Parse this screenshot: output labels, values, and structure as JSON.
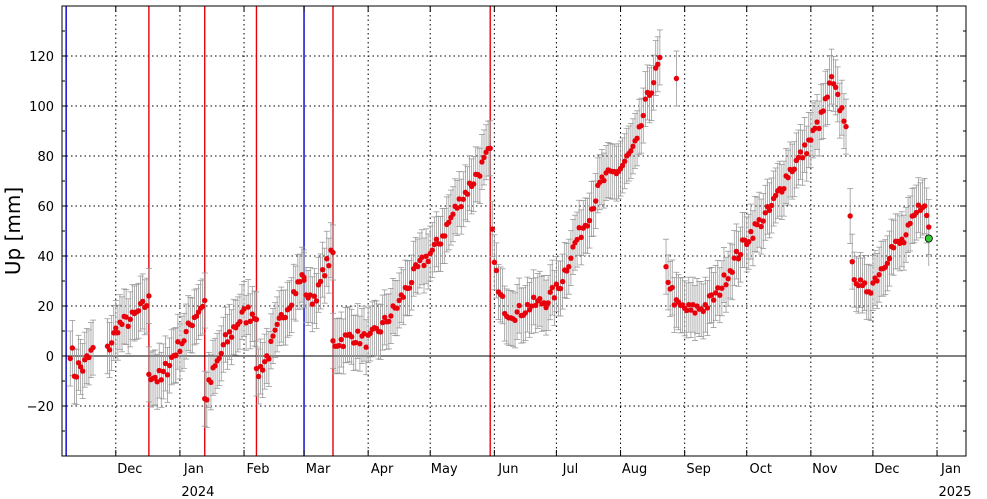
{
  "chart_data": {
    "type": "scatter",
    "ylabel": "Up [mm]",
    "ylim": [
      -40,
      140
    ],
    "yticks": [
      -20,
      0,
      20,
      40,
      60,
      80,
      100,
      120
    ],
    "xlim": [
      "2023-11-05",
      "2025-01-15"
    ],
    "xticks": [
      {
        "date": "2023-12-01",
        "label": "Dec"
      },
      {
        "date": "2024-01-01",
        "label": "Jan"
      },
      {
        "date": "2024-02-01",
        "label": "Feb"
      },
      {
        "date": "2024-03-01",
        "label": "Mar"
      },
      {
        "date": "2024-04-01",
        "label": "Apr"
      },
      {
        "date": "2024-05-01",
        "label": "May"
      },
      {
        "date": "2024-06-01",
        "label": "Jun"
      },
      {
        "date": "2024-07-01",
        "label": "Jul"
      },
      {
        "date": "2024-08-01",
        "label": "Aug"
      },
      {
        "date": "2024-09-01",
        "label": "Sep"
      },
      {
        "date": "2024-10-01",
        "label": "Oct"
      },
      {
        "date": "2024-11-01",
        "label": "Nov"
      },
      {
        "date": "2024-12-01",
        "label": "Dec"
      },
      {
        "date": "2025-01-01",
        "label": "Jan"
      }
    ],
    "year_labels": [
      {
        "date": "2024-01-01",
        "label": "2024"
      },
      {
        "date": "2025-01-01",
        "label": "2025"
      }
    ],
    "grid": true,
    "zero_line": true,
    "colors": {
      "points": "#e8000b",
      "errorbars": "#999999",
      "red_lines": "#e8000b",
      "blue_lines": "#0000cc",
      "latest_point": "#33cc33"
    },
    "vertical_lines": [
      {
        "date": "2023-11-07",
        "color": "blue"
      },
      {
        "date": "2023-12-17",
        "color": "red"
      },
      {
        "date": "2024-01-13",
        "color": "red"
      },
      {
        "date": "2024-02-07",
        "color": "red"
      },
      {
        "date": "2024-03-01",
        "color": "blue"
      },
      {
        "date": "2024-03-15",
        "color": "red"
      },
      {
        "date": "2024-05-30",
        "color": "red"
      }
    ],
    "errorbar_mm": 11,
    "latest_point": {
      "date": "2024-12-28",
      "y": 47
    },
    "segments": [
      {
        "start": "2023-11-09",
        "end": "2023-11-20",
        "knots": [
          [
            0,
            4
          ],
          [
            2,
            -6
          ],
          [
            4,
            -5
          ],
          [
            7,
            -4
          ],
          [
            11,
            2
          ]
        ],
        "noise": 5
      },
      {
        "start": "2023-11-27",
        "end": "2023-12-17",
        "knots": [
          [
            0,
            2
          ],
          [
            5,
            12
          ],
          [
            12,
            15
          ],
          [
            20,
            22
          ]
        ],
        "noise": 3
      },
      {
        "start": "2023-12-17",
        "end": "2023-12-30",
        "knots": [
          [
            0,
            -6
          ],
          [
            6,
            -10
          ],
          [
            10,
            -2
          ],
          [
            13,
            1
          ]
        ],
        "noise": 4
      },
      {
        "start": "2023-12-30",
        "end": "2024-01-13",
        "knots": [
          [
            0,
            2
          ],
          [
            4,
            7
          ],
          [
            9,
            16
          ],
          [
            14,
            22
          ]
        ],
        "noise": 3
      },
      {
        "start": "2024-01-13",
        "end": "2024-02-07",
        "knots": [
          [
            0,
            -18
          ],
          [
            5,
            -5
          ],
          [
            10,
            5
          ],
          [
            16,
            14
          ],
          [
            21,
            17
          ],
          [
            25,
            18
          ]
        ],
        "noise": 4
      },
      {
        "start": "2024-02-07",
        "end": "2024-03-01",
        "knots": [
          [
            0,
            -8
          ],
          [
            6,
            1
          ],
          [
            12,
            15
          ],
          [
            18,
            25
          ],
          [
            23,
            33
          ]
        ],
        "noise": 3
      },
      {
        "start": "2024-03-01",
        "end": "2024-03-15",
        "knots": [
          [
            0,
            28
          ],
          [
            3,
            22
          ],
          [
            7,
            26
          ],
          [
            10,
            35
          ],
          [
            14,
            41
          ]
        ],
        "noise": 3
      },
      {
        "start": "2024-03-15",
        "end": "2024-05-30",
        "knots": [
          [
            0,
            5
          ],
          [
            10,
            8
          ],
          [
            17,
            6
          ],
          [
            24,
            12
          ],
          [
            31,
            20
          ],
          [
            41,
            35
          ],
          [
            51,
            45
          ],
          [
            60,
            60
          ],
          [
            70,
            73
          ],
          [
            76,
            82
          ]
        ],
        "noise": 3
      },
      {
        "start": "2024-05-31",
        "end": "2024-08-20",
        "knots": [
          [
            0,
            48
          ],
          [
            3,
            25
          ],
          [
            7,
            18
          ],
          [
            12,
            17
          ],
          [
            18,
            20
          ],
          [
            26,
            22
          ],
          [
            32,
            27
          ],
          [
            40,
            45
          ],
          [
            46,
            55
          ],
          [
            53,
            70
          ],
          [
            62,
            75
          ],
          [
            70,
            85
          ],
          [
            74,
            100
          ],
          [
            81,
            118
          ]
        ],
        "noise": 3
      },
      {
        "start": "2024-08-28",
        "end": "2024-08-28",
        "knots": [
          [
            0,
            111
          ]
        ],
        "noise": 0
      },
      {
        "start": "2024-08-23",
        "end": "2024-11-18",
        "knots": [
          [
            0,
            34
          ],
          [
            5,
            20
          ],
          [
            12,
            18
          ],
          [
            19,
            20
          ],
          [
            25,
            25
          ],
          [
            33,
            38
          ],
          [
            40,
            48
          ],
          [
            50,
            58
          ],
          [
            59,
            73
          ],
          [
            67,
            82
          ],
          [
            75,
            95
          ],
          [
            80,
            110
          ],
          [
            84,
            100
          ],
          [
            87,
            94
          ]
        ],
        "noise": 3
      },
      {
        "start": "2024-11-20",
        "end": "2024-11-20",
        "knots": [
          [
            0,
            56
          ]
        ],
        "noise": 0
      },
      {
        "start": "2024-11-21",
        "end": "2024-12-28",
        "knots": [
          [
            0,
            35
          ],
          [
            5,
            26
          ],
          [
            9,
            28
          ],
          [
            14,
            35
          ],
          [
            19,
            43
          ],
          [
            25,
            46
          ],
          [
            30,
            55
          ],
          [
            34,
            62
          ],
          [
            37,
            52
          ]
        ],
        "noise": 3
      }
    ]
  }
}
